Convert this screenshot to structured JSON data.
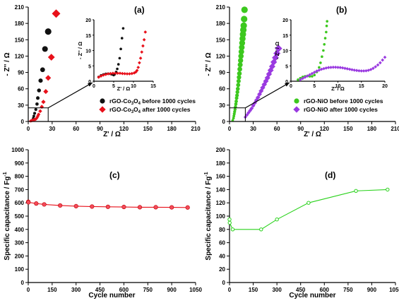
{
  "figure_colors": {
    "black": "#111111",
    "red": "#e8101a",
    "green": "#3cc81e",
    "purple": "#9a3ae0",
    "line_red": "#e8101a",
    "line_green": "#2ad21c"
  },
  "chart_data": [
    {
      "id": "a",
      "panel_label": "(a)",
      "type": "scatter",
      "xlabel": "Z' / Ω",
      "ylabel": "- Z'' / Ω",
      "xlim": [
        0,
        210
      ],
      "ylim": [
        0,
        210
      ],
      "xticks": [
        "0",
        "30",
        "60",
        "90",
        "120",
        "150",
        "180",
        "210"
      ],
      "yticks": [
        "0",
        "30",
        "60",
        "90",
        "120",
        "150",
        "180",
        "210"
      ],
      "legend_position": "right",
      "series": [
        {
          "name": "rGO-Co3O4 before 1000 cycles",
          "legend_label": [
            "rGO-Co",
            "3",
            "O",
            "4",
            " before 1000 cycles"
          ],
          "color": "#111111",
          "marker": "circle",
          "x": [
            5.6,
            6.3,
            7,
            8,
            9.5,
            11,
            12,
            13.5,
            15.5,
            18,
            21,
            25
          ],
          "y": [
            3,
            6,
            10,
            15,
            22,
            32,
            43,
            57,
            75,
            95,
            133,
            165
          ]
        },
        {
          "name": "rGO-Co3O4 after 1000 cycles",
          "legend_label": [
            "rGO-Co",
            "3",
            "O",
            "4",
            " after 1000 cycles"
          ],
          "color": "#e8101a",
          "marker": "diamond",
          "x": [
            3,
            4,
            5,
            6,
            7,
            8,
            9,
            10,
            11,
            12,
            13,
            15,
            17,
            19,
            22,
            25,
            29,
            35
          ],
          "y": [
            1,
            1.5,
            2,
            2.5,
            3,
            3.5,
            4,
            5,
            7,
            10,
            13,
            19,
            27,
            36,
            55,
            80,
            118,
            198
          ]
        }
      ],
      "inset": {
        "xlabel": "Z' / Ω",
        "ylabel": "- Z'' / Ω",
        "xlim": [
          0,
          15
        ],
        "ylim": [
          0,
          20
        ],
        "xticks": [
          "0",
          "5",
          "10",
          "15"
        ],
        "yticks": [
          "0",
          "5",
          "10",
          "15",
          "20"
        ],
        "series": [
          {
            "color": "#111111",
            "marker": "circle",
            "x": [
              1.2,
              1.8,
              2.4,
              3,
              3.6,
              4.2,
              4.6,
              5,
              5.3,
              5.6,
              5.9,
              6.2,
              6.5,
              6.8,
              7.1,
              7.4
            ],
            "y": [
              1.4,
              1.9,
              2.2,
              2.4,
              2.45,
              2.35,
              2.2,
              2.0,
              2.3,
              3.0,
              4.0,
              5.5,
              7.5,
              10.5,
              14,
              17.2
            ]
          },
          {
            "color": "#e8101a",
            "marker": "diamond",
            "x": [
              1.2,
              1.8,
              2.4,
              3,
              3.6,
              4.2,
              4.8,
              5.4,
              6,
              6.6,
              7.2,
              7.8,
              8.4,
              9,
              9.6,
              10.2,
              10.6,
              10.9,
              11.2,
              11.5,
              11.8,
              12.1,
              12.4,
              12.7,
              13
            ],
            "y": [
              1.3,
              1.7,
              2,
              2.2,
              2.4,
              2.5,
              2.6,
              2.6,
              2.6,
              2.6,
              2.5,
              2.45,
              2.4,
              2.4,
              2.5,
              2.7,
              3,
              3.5,
              4.5,
              6,
              7.5,
              9.5,
              11.5,
              13.5,
              16
            ]
          }
        ]
      }
    },
    {
      "id": "b",
      "panel_label": "(b)",
      "type": "scatter",
      "xlabel": "Z' / Ω",
      "ylabel": "- Z'' / Ω",
      "xlim": [
        0,
        210
      ],
      "ylim": [
        0,
        210
      ],
      "xticks": [
        "0",
        "30",
        "60",
        "90",
        "120",
        "150",
        "180",
        "210"
      ],
      "yticks": [
        "0",
        "30",
        "60",
        "90",
        "120",
        "150",
        "180",
        "210"
      ],
      "legend_position": "right",
      "series": [
        {
          "name": "rGO-NiO before 1000 cycles",
          "legend_label": [
            "rGO-NiO before 1000 cycles"
          ],
          "color": "#3cc81e",
          "marker": "circle",
          "x": [
            4,
            5,
            5.5,
            6,
            6.5,
            7,
            7.5,
            8,
            8.5,
            9,
            9.5,
            10,
            10.5,
            11,
            11.5,
            12,
            12.5,
            13,
            13.5,
            14,
            14.5,
            15,
            15.5,
            16,
            16.5,
            17,
            17.5,
            18,
            18.5,
            19
          ],
          "y": [
            2,
            6,
            10,
            14,
            18,
            22,
            27,
            32,
            37,
            43,
            48,
            54,
            60,
            67,
            74,
            81,
            88,
            96,
            104,
            112,
            120,
            128,
            136,
            144,
            152,
            160,
            168,
            176,
            188,
            205
          ]
        },
        {
          "name": "rGO-NiO after 1000 cycles",
          "legend_label": [
            "rGO-NiO after 1000 cycles"
          ],
          "color": "#9a3ae0",
          "marker": "diamond",
          "x": [
            20,
            22,
            24,
            26,
            28,
            30,
            32,
            34,
            36,
            38,
            40,
            42,
            44,
            46,
            48,
            50,
            52,
            54,
            56,
            58,
            60,
            62
          ],
          "y": [
            8,
            12,
            16,
            20,
            24,
            29,
            34,
            39,
            44,
            50,
            56,
            62,
            68,
            74,
            80,
            87,
            94,
            101,
            109,
            117,
            125,
            134
          ]
        }
      ],
      "inset": {
        "xlabel": "Z' / Ω",
        "ylabel": "- Z'' / Ω",
        "xlim": [
          0,
          20
        ],
        "ylim": [
          0,
          20
        ],
        "xticks": [
          "0",
          "5",
          "10",
          "15",
          "20"
        ],
        "yticks": [
          "0",
          "5",
          "10",
          "15",
          "20"
        ],
        "series": [
          {
            "color": "#3cc81e",
            "marker": "circle",
            "x": [
              1.5,
              2,
              2.5,
              3,
              3.5,
              4,
              4.5,
              5,
              5.5,
              6,
              6.3,
              6.6,
              6.9,
              7.1,
              7.3,
              7.5,
              7.6,
              7.7
            ],
            "y": [
              0.5,
              1,
              1.4,
              1.6,
              1.7,
              1.6,
              1.6,
              2,
              3,
              4.5,
              6,
              8,
              10,
              12,
              14,
              16,
              18,
              19.5
            ]
          },
          {
            "color": "#9a3ae0",
            "marker": "diamond",
            "x": [
              2,
              2.5,
              3,
              3.5,
              4,
              4.5,
              5,
              5.5,
              6,
              6.5,
              7,
              7.5,
              8,
              8.5,
              9,
              9.5,
              10,
              10.5,
              11,
              11.5,
              12,
              12.5,
              13,
              13.5,
              14,
              14.5,
              15,
              15.5,
              16,
              16.5,
              17,
              17.5,
              18,
              18.5,
              19,
              19.5,
              20
            ],
            "y": [
              0.5,
              0.9,
              1.3,
              1.7,
              2.1,
              2.5,
              2.9,
              3.3,
              3.6,
              3.9,
              4.1,
              4.3,
              4.45,
              4.5,
              4.55,
              4.55,
              4.5,
              4.45,
              4.35,
              4.2,
              4.05,
              3.9,
              3.75,
              3.6,
              3.5,
              3.4,
              3.35,
              3.35,
              3.4,
              3.55,
              3.8,
              4.2,
              4.7,
              5.3,
              6,
              6.9,
              7.8
            ]
          }
        ]
      }
    },
    {
      "id": "c",
      "panel_label": "(c)",
      "type": "line",
      "xlabel": "Cycle number",
      "ylabel": "Specific capacitance / Fg",
      "ylabel_sup": "-1",
      "xlim": [
        0,
        1050
      ],
      "ylim": [
        0,
        1000
      ],
      "xticks": [
        "0",
        "150",
        "300",
        "450",
        "600",
        "750",
        "900",
        "1050"
      ],
      "yticks": [
        "0",
        "100",
        "200",
        "300",
        "400",
        "500",
        "600",
        "700",
        "800",
        "900",
        "1000"
      ],
      "series": [
        {
          "color": "#e8101a",
          "x": [
            0,
            1,
            50,
            100,
            200,
            300,
            400,
            500,
            600,
            700,
            800,
            900,
            1000
          ],
          "y": [
            608,
            604,
            595,
            588,
            580,
            575,
            572,
            570,
            569,
            567,
            567,
            566,
            565
          ]
        }
      ]
    },
    {
      "id": "d",
      "panel_label": "(d)",
      "type": "line",
      "xlabel": "Cycle number",
      "ylabel": "Specific capacitance / Fg",
      "ylabel_sup": "-1",
      "xlim": [
        0,
        1050
      ],
      "ylim": [
        0,
        200
      ],
      "xticks": [
        "0",
        "150",
        "300",
        "450",
        "600",
        "750",
        "900",
        "1050"
      ],
      "yticks": [
        "0",
        "20",
        "40",
        "60",
        "80",
        "100",
        "120",
        "140",
        "160",
        "180",
        "200"
      ],
      "series": [
        {
          "color": "#2ad21c",
          "x": [
            0,
            1,
            20,
            200,
            300,
            500,
            800,
            1000
          ],
          "y": [
            95,
            90,
            80,
            80,
            95,
            120,
            138,
            140
          ]
        }
      ]
    }
  ]
}
